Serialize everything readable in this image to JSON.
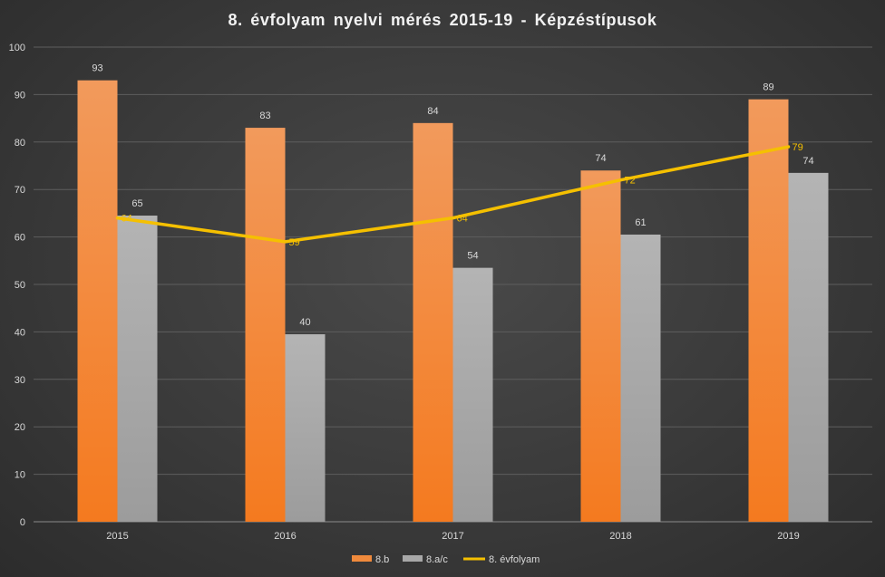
{
  "chart_data": {
    "type": "bar",
    "title": "8. évfolyam  nyelvi  mérés  2015-19  -  Képzéstípusok",
    "categories": [
      "2015",
      "2016",
      "2017",
      "2018",
      "2019"
    ],
    "ylim": [
      0,
      100
    ],
    "yticks": [
      "0",
      "10",
      "20",
      "30",
      "40",
      "50",
      "60",
      "70",
      "80",
      "90",
      "100"
    ],
    "grid": true,
    "legend_position": "bottom",
    "series": [
      {
        "name": "8.b",
        "kind": "bar",
        "values": [
          93,
          83,
          84,
          74,
          89
        ],
        "labels": [
          "93",
          "83",
          "84",
          "74",
          "89"
        ],
        "color": "#f08a3c"
      },
      {
        "name": "8.a/c",
        "kind": "bar",
        "values": [
          64.5,
          39.5,
          53.5,
          60.5,
          73.5
        ],
        "labels": [
          "65",
          "40",
          "54",
          "61",
          "74"
        ],
        "color": "#a8a8a8"
      },
      {
        "name": "8. évfolyam",
        "kind": "line",
        "values": [
          64,
          59,
          64,
          72,
          79
        ],
        "labels": [
          "64",
          "59",
          "64",
          "72",
          "79"
        ],
        "color": "#f5c000"
      }
    ]
  }
}
